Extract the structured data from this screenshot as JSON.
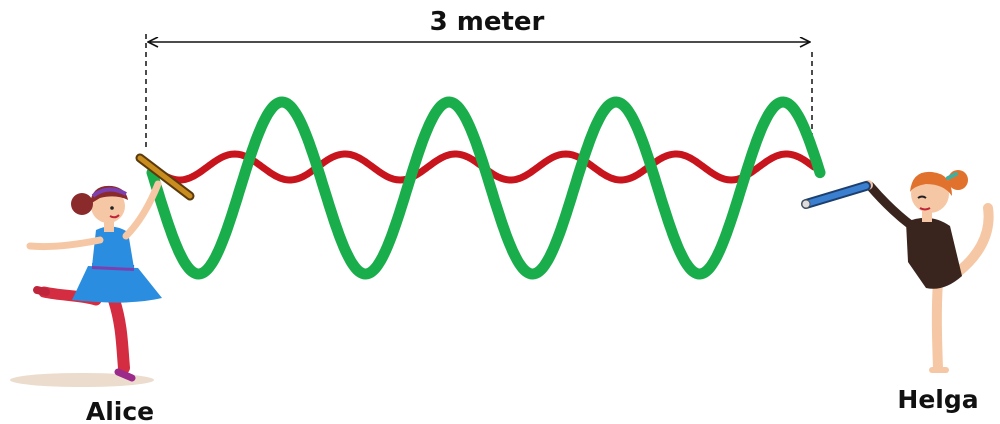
{
  "distance": {
    "label": "3 meter"
  },
  "people": [
    {
      "name": "Alice"
    },
    {
      "name": "Helga"
    }
  ],
  "waves": [
    {
      "color": "#1aad4b",
      "cycles": 4
    },
    {
      "color": "#c8141c",
      "cycles": 6
    }
  ],
  "colors": {
    "alice_hair": "#8b2a2a",
    "alice_dress": "#2a8de0",
    "alice_legs": "#d42c40",
    "helga_hair": "#e0722e",
    "helga_leotard": "#3a241e",
    "skin": "#f6c7a4",
    "stick_left": "#c98c1f",
    "stick_right": "#3a7fd0"
  },
  "icons": [
    "alice-figure",
    "helga-figure",
    "ribbon-stick-left",
    "ribbon-stick-right"
  ]
}
